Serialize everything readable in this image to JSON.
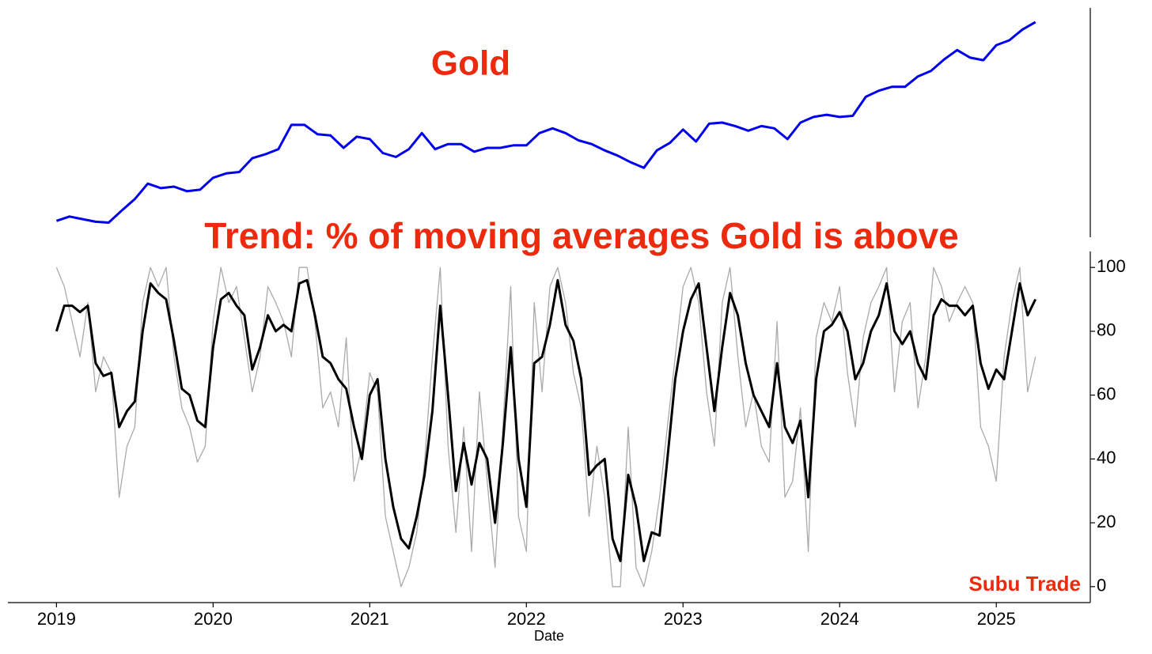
{
  "chart_data": [
    {
      "type": "line",
      "title": "Gold",
      "log": true,
      "xlim": [
        2018.69,
        2025.6
      ],
      "ylim": [
        1200,
        3300
      ],
      "x": [
        2019.0,
        2019.083,
        2019.167,
        2019.25,
        2019.333,
        2019.417,
        2019.5,
        2019.583,
        2019.667,
        2019.75,
        2019.833,
        2019.917,
        2020.0,
        2020.083,
        2020.167,
        2020.25,
        2020.333,
        2020.417,
        2020.5,
        2020.583,
        2020.667,
        2020.75,
        2020.833,
        2020.917,
        2021.0,
        2021.083,
        2021.167,
        2021.25,
        2021.333,
        2021.417,
        2021.5,
        2021.583,
        2021.667,
        2021.75,
        2021.833,
        2021.917,
        2022.0,
        2022.083,
        2022.167,
        2022.25,
        2022.333,
        2022.417,
        2022.5,
        2022.583,
        2022.667,
        2022.75,
        2022.833,
        2022.917,
        2023.0,
        2023.083,
        2023.167,
        2023.25,
        2023.333,
        2023.417,
        2023.5,
        2023.583,
        2023.667,
        2023.75,
        2023.833,
        2023.917,
        2024.0,
        2024.083,
        2024.167,
        2024.25,
        2024.333,
        2024.417,
        2024.5,
        2024.583,
        2024.667,
        2024.75,
        2024.833,
        2024.917,
        2025.0,
        2025.083,
        2025.167,
        2025.25
      ],
      "series": [
        {
          "color": "#0000ee",
          "values": [
            1290,
            1315,
            1300,
            1285,
            1280,
            1350,
            1420,
            1520,
            1490,
            1500,
            1470,
            1480,
            1560,
            1590,
            1600,
            1700,
            1730,
            1770,
            1970,
            1970,
            1890,
            1880,
            1780,
            1870,
            1850,
            1740,
            1710,
            1770,
            1900,
            1770,
            1810,
            1810,
            1750,
            1780,
            1780,
            1800,
            1800,
            1900,
            1940,
            1900,
            1840,
            1810,
            1760,
            1720,
            1670,
            1630,
            1760,
            1820,
            1930,
            1830,
            1980,
            1990,
            1960,
            1920,
            1960,
            1940,
            1850,
            1990,
            2040,
            2060,
            2040,
            2050,
            2230,
            2290,
            2330,
            2330,
            2440,
            2500,
            2630,
            2740,
            2650,
            2620,
            2800,
            2860,
            3000,
            3100
          ]
        }
      ]
    },
    {
      "type": "line",
      "title": "Trend: % of moving averages Gold is above",
      "xlabel": "Date",
      "annotation": "Subu Trade",
      "xlim": [
        2018.69,
        2025.6
      ],
      "ylim": [
        -5,
        105
      ],
      "xticks": [
        2019,
        2020,
        2021,
        2022,
        2023,
        2024,
        2025
      ],
      "yticks": [
        0,
        20,
        40,
        60,
        80,
        100
      ],
      "x": [
        2019.0,
        2019.05,
        2019.1,
        2019.15,
        2019.2,
        2019.25,
        2019.3,
        2019.35,
        2019.4,
        2019.45,
        2019.5,
        2019.55,
        2019.6,
        2019.65,
        2019.7,
        2019.75,
        2019.8,
        2019.85,
        2019.9,
        2019.95,
        2020.0,
        2020.05,
        2020.1,
        2020.15,
        2020.2,
        2020.25,
        2020.3,
        2020.35,
        2020.4,
        2020.45,
        2020.5,
        2020.55,
        2020.6,
        2020.65,
        2020.7,
        2020.75,
        2020.8,
        2020.85,
        2020.9,
        2020.95,
        2021.0,
        2021.05,
        2021.1,
        2021.15,
        2021.2,
        2021.25,
        2021.3,
        2021.35,
        2021.4,
        2021.45,
        2021.5,
        2021.55,
        2021.6,
        2021.65,
        2021.7,
        2021.75,
        2021.8,
        2021.85,
        2021.9,
        2021.95,
        2022.0,
        2022.05,
        2022.1,
        2022.15,
        2022.2,
        2022.25,
        2022.3,
        2022.35,
        2022.4,
        2022.45,
        2022.5,
        2022.55,
        2022.6,
        2022.65,
        2022.7,
        2022.75,
        2022.8,
        2022.85,
        2022.9,
        2022.95,
        2023.0,
        2023.05,
        2023.1,
        2023.15,
        2023.2,
        2023.25,
        2023.3,
        2023.35,
        2023.4,
        2023.45,
        2023.5,
        2023.55,
        2023.6,
        2023.65,
        2023.7,
        2023.75,
        2023.8,
        2023.85,
        2023.9,
        2023.95,
        2024.0,
        2024.05,
        2024.1,
        2024.15,
        2024.2,
        2024.25,
        2024.3,
        2024.35,
        2024.4,
        2024.45,
        2024.5,
        2024.55,
        2024.6,
        2024.65,
        2024.7,
        2024.75,
        2024.8,
        2024.85,
        2024.9,
        2024.95,
        2025.0,
        2025.05,
        2025.1,
        2025.15,
        2025.2,
        2025.25
      ],
      "series": [
        {
          "color": "#aaaaaa",
          "values": [
            100,
            94,
            83,
            72,
            89,
            61,
            72,
            67,
            28,
            44,
            50,
            89,
            100,
            94,
            100,
            72,
            56,
            50,
            39,
            44,
            83,
            100,
            89,
            94,
            78,
            61,
            72,
            94,
            89,
            83,
            72,
            100,
            100,
            83,
            56,
            61,
            50,
            78,
            33,
            44,
            67,
            61,
            22,
            11,
            0,
            6,
            17,
            39,
            72,
            100,
            44,
            17,
            50,
            11,
            61,
            33,
            6,
            50,
            94,
            22,
            11,
            89,
            61,
            94,
            100,
            89,
            67,
            56,
            22,
            44,
            28,
            0,
            0,
            50,
            6,
            0,
            11,
            28,
            50,
            72,
            94,
            100,
            89,
            61,
            44,
            89,
            100,
            72,
            50,
            61,
            44,
            39,
            83,
            28,
            33,
            56,
            11,
            78,
            89,
            83,
            94,
            67,
            50,
            78,
            89,
            94,
            100,
            61,
            83,
            89,
            56,
            72,
            100,
            94,
            83,
            89,
            94,
            89,
            50,
            44,
            33,
            72,
            89,
            100,
            61,
            72
          ]
        },
        {
          "color": "#000000",
          "values": [
            80,
            88,
            88,
            86,
            88,
            70,
            66,
            67,
            50,
            55,
            58,
            80,
            95,
            92,
            90,
            77,
            62,
            60,
            52,
            50,
            75,
            90,
            92,
            88,
            85,
            68,
            75,
            85,
            80,
            82,
            80,
            95,
            96,
            85,
            72,
            70,
            65,
            62,
            50,
            40,
            60,
            65,
            40,
            25,
            15,
            12,
            22,
            35,
            55,
            88,
            60,
            30,
            45,
            32,
            45,
            40,
            20,
            45,
            75,
            40,
            25,
            70,
            72,
            82,
            96,
            82,
            77,
            65,
            35,
            38,
            40,
            15,
            8,
            35,
            25,
            8,
            17,
            16,
            40,
            65,
            80,
            90,
            95,
            75,
            55,
            75,
            92,
            85,
            70,
            60,
            55,
            50,
            70,
            50,
            45,
            52,
            28,
            65,
            80,
            82,
            86,
            80,
            65,
            70,
            80,
            85,
            95,
            80,
            76,
            80,
            70,
            65,
            85,
            90,
            88,
            88,
            85,
            88,
            70,
            62,
            68,
            65,
            80,
            95,
            85,
            90
          ]
        }
      ]
    }
  ]
}
